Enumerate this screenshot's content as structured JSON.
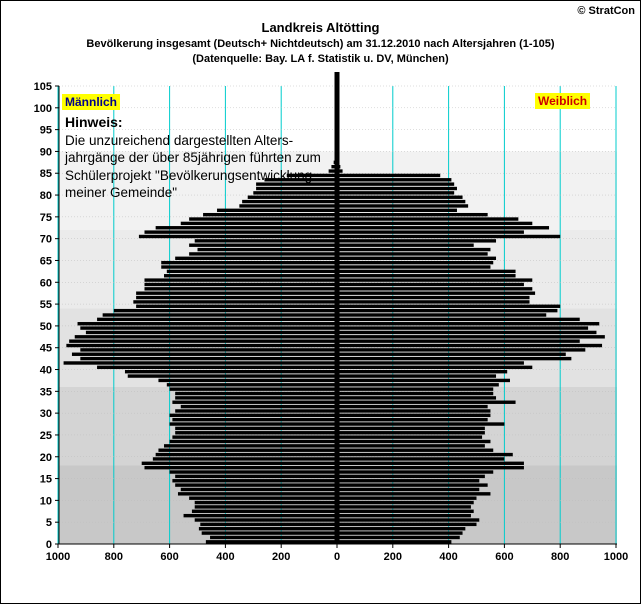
{
  "title": "Landkreis Altötting",
  "subtitle_1": "Bevölkerung  insgesamt (Deutsch+ Nichtdeutsch) am 31.12.2010 nach Altersjahren (1-105)",
  "subtitle_2": "(Datenquelle: Bay. LA f. Statistik u. DV, München)",
  "copyright": "© StratCon",
  "male_label": "Männlich",
  "female_label": "Weiblich",
  "note": {
    "heading": "Hinweis:",
    "lines": [
      "Die unzureichend dargestellten Alters-",
      "jahrgänge der über 85jährigen führten zum",
      "Schülerprojekt \"Bevölkerungsentwicklung",
      "meiner Gemeinde\""
    ]
  },
  "colors": {
    "bar": "#000000",
    "gridline": "#00cccc",
    "band_light": "#ffffff",
    "band_shades": [
      "#d0d0d0",
      "#e0e0e0",
      "#f0f0f0"
    ]
  },
  "chart_data": {
    "type": "bar",
    "orientation": "horizontal-pyramid",
    "x_ticks": [
      "1000",
      "800",
      "600",
      "400",
      "200",
      "0",
      "200",
      "400",
      "600",
      "800",
      "1000"
    ],
    "y_ticks": [
      "0",
      "5",
      "10",
      "15",
      "20",
      "25",
      "30",
      "35",
      "40",
      "45",
      "50",
      "55",
      "60",
      "65",
      "70",
      "75",
      "80",
      "85",
      "90",
      "95",
      "100",
      "105"
    ],
    "xlim": [
      -1000,
      1000
    ],
    "ylim": [
      0,
      105
    ],
    "series": [
      {
        "name": "Männlich",
        "ages": [
          0,
          1,
          2,
          3,
          4,
          5,
          6,
          7,
          8,
          9,
          10,
          11,
          12,
          13,
          14,
          15,
          16,
          17,
          18,
          19,
          20,
          21,
          22,
          23,
          24,
          25,
          26,
          27,
          28,
          29,
          30,
          31,
          32,
          33,
          34,
          35,
          36,
          37,
          38,
          39,
          40,
          41,
          42,
          43,
          44,
          45,
          46,
          47,
          48,
          49,
          50,
          51,
          52,
          53,
          54,
          55,
          56,
          57,
          58,
          59,
          60,
          61,
          62,
          63,
          64,
          65,
          66,
          67,
          68,
          69,
          70,
          71,
          72,
          73,
          74,
          75,
          76,
          77,
          78,
          79,
          80,
          81,
          82,
          83,
          84,
          85,
          86,
          87,
          88,
          89,
          90
        ],
        "values": [
          470,
          455,
          485,
          495,
          490,
          510,
          550,
          520,
          510,
          510,
          530,
          570,
          560,
          580,
          590,
          580,
          600,
          690,
          700,
          660,
          650,
          640,
          620,
          600,
          590,
          580,
          580,
          600,
          590,
          600,
          580,
          560,
          590,
          580,
          580,
          600,
          610,
          640,
          750,
          760,
          860,
          980,
          920,
          950,
          920,
          970,
          960,
          940,
          900,
          920,
          930,
          860,
          840,
          800,
          720,
          730,
          720,
          720,
          690,
          690,
          690,
          620,
          610,
          630,
          630,
          580,
          530,
          500,
          530,
          510,
          710,
          690,
          650,
          560,
          530,
          480,
          430,
          350,
          340,
          320,
          300,
          290,
          290,
          260,
          180,
          30,
          20,
          12,
          8,
          5,
          3
        ]
      },
      {
        "name": "Weiblich",
        "ages": [
          0,
          1,
          2,
          3,
          4,
          5,
          6,
          7,
          8,
          9,
          10,
          11,
          12,
          13,
          14,
          15,
          16,
          17,
          18,
          19,
          20,
          21,
          22,
          23,
          24,
          25,
          26,
          27,
          28,
          29,
          30,
          31,
          32,
          33,
          34,
          35,
          36,
          37,
          38,
          39,
          40,
          41,
          42,
          43,
          44,
          45,
          46,
          47,
          48,
          49,
          50,
          51,
          52,
          53,
          54,
          55,
          56,
          57,
          58,
          59,
          60,
          61,
          62,
          63,
          64,
          65,
          66,
          67,
          68,
          69,
          70,
          71,
          72,
          73,
          74,
          75,
          76,
          77,
          78,
          79,
          80,
          81,
          82,
          83,
          84,
          85,
          86,
          87,
          88,
          89,
          90
        ],
        "values": [
          410,
          440,
          450,
          460,
          500,
          510,
          480,
          490,
          480,
          490,
          500,
          550,
          510,
          540,
          510,
          530,
          560,
          670,
          670,
          600,
          630,
          560,
          530,
          550,
          520,
          530,
          530,
          600,
          540,
          550,
          550,
          540,
          640,
          570,
          560,
          560,
          580,
          620,
          570,
          610,
          700,
          670,
          840,
          820,
          890,
          950,
          870,
          960,
          930,
          900,
          940,
          870,
          750,
          790,
          800,
          690,
          690,
          710,
          700,
          670,
          700,
          640,
          640,
          550,
          560,
          570,
          540,
          550,
          490,
          570,
          800,
          670,
          760,
          700,
          650,
          540,
          430,
          470,
          460,
          450,
          420,
          430,
          420,
          410,
          370,
          20,
          12,
          8,
          5,
          3,
          2
        ]
      }
    ]
  }
}
